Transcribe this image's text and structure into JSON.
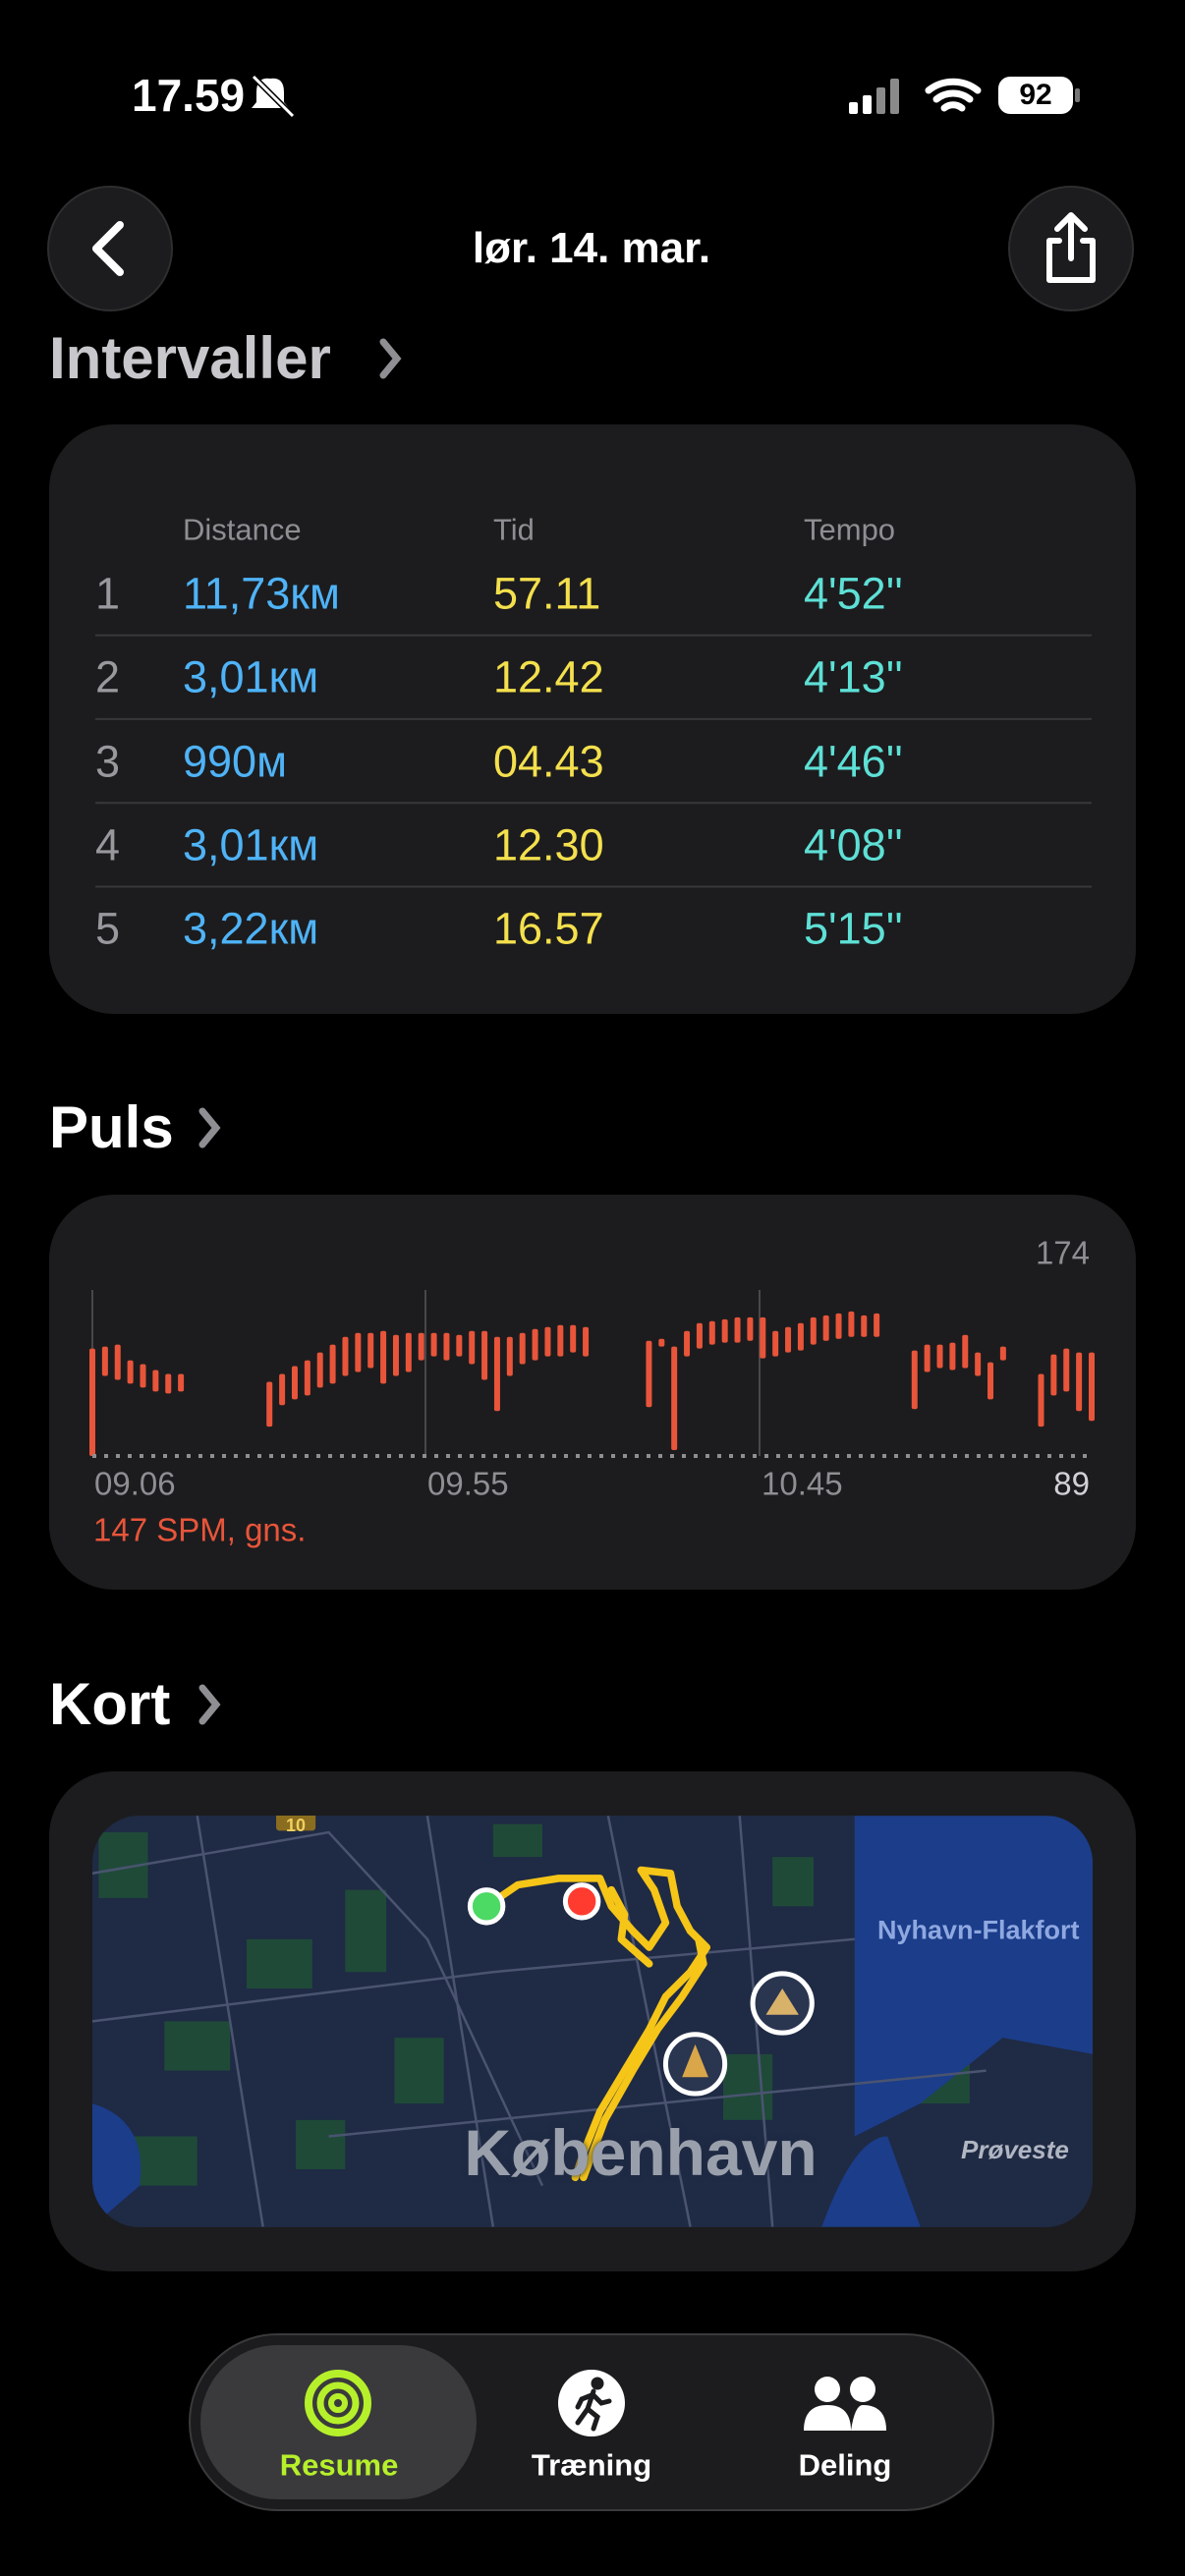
{
  "status_bar": {
    "time": "17.59",
    "battery": "92"
  },
  "header": {
    "title": "lør. 14. mar."
  },
  "intervals": {
    "title": "Intervaller",
    "columns": [
      "Distance",
      "Tid",
      "Tempo"
    ],
    "rows": [
      [
        "1",
        "11,73км",
        "57.11",
        "4'52''"
      ],
      [
        "2",
        "3,01км",
        "12.42",
        "4'13''"
      ],
      [
        "3",
        "990м",
        "04.43",
        "4'46''"
      ],
      [
        "4",
        "3,01км",
        "12.30",
        "4'08''"
      ],
      [
        "5",
        "3,22км",
        "16.57",
        "5'15''"
      ]
    ]
  },
  "chart_data": {
    "type": "range-bar",
    "title": "Puls",
    "subtitle": "147 SPM, gns.",
    "color": "#e8553a",
    "x_labels": [
      "09.06",
      "09.55",
      "10.45"
    ],
    "ylim": [
      89,
      174
    ],
    "yticks": [
      174,
      89
    ],
    "low": [
      89,
      130,
      128,
      126,
      124,
      122,
      121,
      122,
      null,
      null,
      null,
      null,
      null,
      null,
      104,
      115,
      118,
      120,
      124,
      126,
      130,
      132,
      134,
      126,
      130,
      132,
      138,
      140,
      138,
      140,
      136,
      128,
      112,
      130,
      136,
      138,
      140,
      140,
      142,
      140,
      null,
      null,
      null,
      null,
      114,
      145,
      92,
      140,
      144,
      146,
      147,
      147,
      148,
      139,
      140,
      142,
      143,
      146,
      148,
      149,
      150,
      150,
      150,
      null,
      null,
      113,
      132,
      134,
      133,
      134,
      130,
      118,
      138,
      null,
      null,
      104,
      120,
      122,
      112,
      107
    ],
    "high": [
      144,
      145,
      146,
      138,
      136,
      133,
      131,
      131,
      null,
      null,
      null,
      null,
      null,
      null,
      127,
      131,
      135,
      138,
      142,
      146,
      150,
      152,
      152,
      153,
      151,
      152,
      152,
      152,
      152,
      151,
      153,
      153,
      150,
      150,
      152,
      154,
      155,
      156,
      156,
      155,
      null,
      null,
      null,
      null,
      148,
      149,
      145,
      153,
      157,
      158,
      159,
      160,
      160,
      160,
      153,
      155,
      157,
      160,
      161,
      162,
      163,
      161,
      162,
      null,
      null,
      143,
      146,
      146,
      147,
      151,
      142,
      137,
      145,
      null,
      null,
      131,
      141,
      144,
      142,
      142
    ]
  },
  "map": {
    "title": "Kort",
    "city": "København",
    "place": "Nyhavn-Flakfort",
    "island": "Prøveste",
    "road": "10"
  },
  "tab_bar": {
    "tabs": [
      "Resume",
      "Træning",
      "Deling"
    ]
  }
}
